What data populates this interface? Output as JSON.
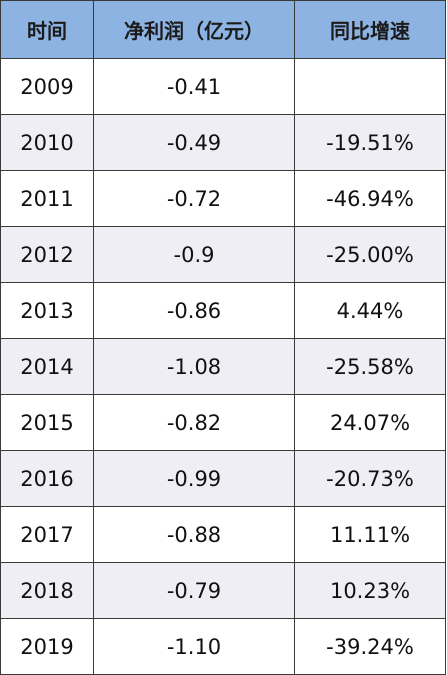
{
  "table": {
    "headers": [
      "时间",
      "净利润（亿元）",
      "同比增速"
    ],
    "rows": [
      [
        "2009",
        "-0.41",
        ""
      ],
      [
        "2010",
        "-0.49",
        "-19.51%"
      ],
      [
        "2011",
        "-0.72",
        "-46.94%"
      ],
      [
        "2012",
        "-0.9",
        "-25.00%"
      ],
      [
        "2013",
        "-0.86",
        "4.44%"
      ],
      [
        "2014",
        "-1.08",
        "-25.58%"
      ],
      [
        "2015",
        "-0.82",
        "24.07%"
      ],
      [
        "2016",
        "-0.99",
        "-20.73%"
      ],
      [
        "2017",
        "-0.88",
        "11.11%"
      ],
      [
        "2018",
        "-0.79",
        "10.23%"
      ],
      [
        "2019",
        "-1.10",
        "-39.24%"
      ]
    ]
  },
  "colors": {
    "header_bg": "#8db3e2",
    "row_alt_bg": "#eeeef4",
    "border": "#3a3a3a"
  }
}
